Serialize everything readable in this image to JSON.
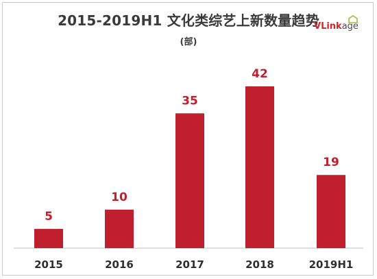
{
  "title": "2015-2019H1 文化类综艺上新数量趋势",
  "subtitle": "(部)",
  "logo": {
    "text_v": "V",
    "text_link": "Link",
    "text_age": "age",
    "accent": "#d8232a",
    "icon": "house-outline-icon"
  },
  "chart_data": {
    "type": "bar",
    "categories": [
      "2015",
      "2016",
      "2017",
      "2018",
      "2019H1"
    ],
    "values": [
      5,
      10,
      35,
      42,
      19
    ],
    "title": "2015-2019H1 文化类综艺上新数量趋势",
    "unit": "(部)",
    "ylim": [
      0,
      42
    ],
    "grid": false,
    "legend": "none",
    "bar_color": "#c0202e"
  }
}
